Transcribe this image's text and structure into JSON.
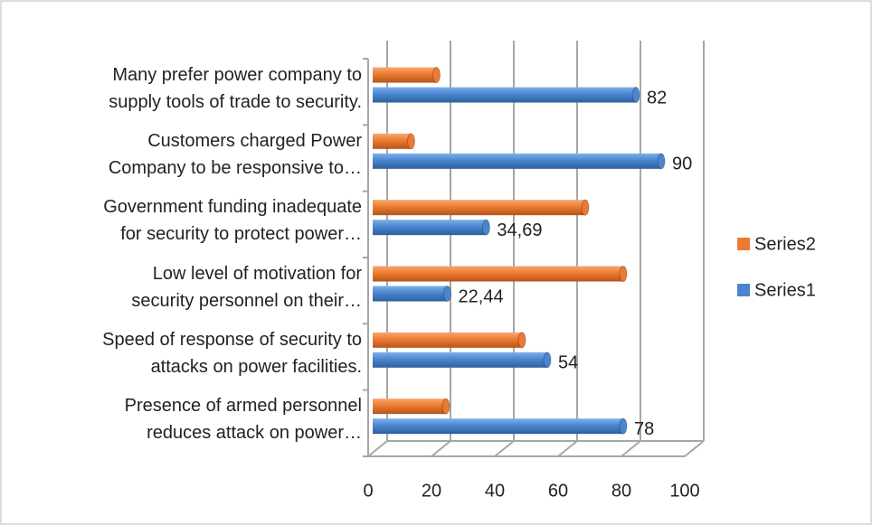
{
  "chart_data": {
    "type": "bar",
    "orientation": "horizontal",
    "categories": [
      "Many prefer power company to\nsupply tools of trade to security.",
      "Customers charged Power\nCompany to be responsive to…",
      "Government funding inadequate\nfor security to protect power…",
      "Low level of motivation for\nsecurity personnel on their…",
      "Speed of response of security to\nattacks on power facilities.",
      "Presence of armed personnel\nreduces attack on power…"
    ],
    "series": [
      {
        "name": "Series1",
        "color": "#4a86d0",
        "values": [
          82,
          90,
          34.69,
          22.44,
          54,
          78
        ],
        "value_labels": [
          "82",
          "90",
          "34,69",
          "22,44",
          "54",
          "78"
        ]
      },
      {
        "name": "Series2",
        "color": "#ee7a30",
        "values": [
          19,
          11,
          66,
          78,
          46,
          22
        ]
      }
    ],
    "xlim": [
      0,
      100
    ],
    "xticks": [
      0,
      20,
      40,
      60,
      80,
      100
    ],
    "grid": true,
    "legend": "right"
  }
}
